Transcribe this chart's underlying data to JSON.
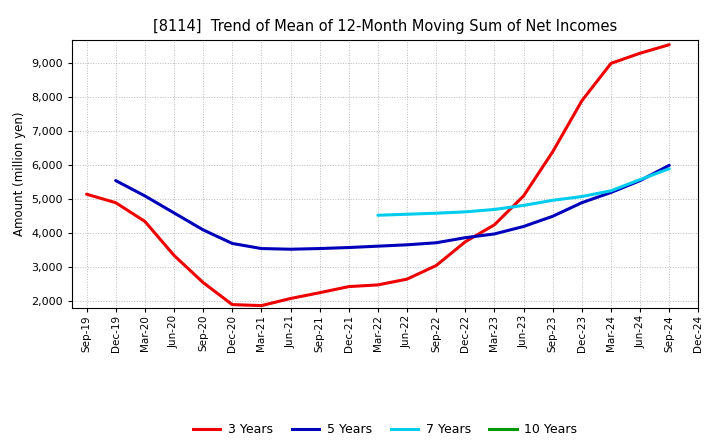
{
  "title": "[8114]  Trend of Mean of 12-Month Moving Sum of Net Incomes",
  "ylabel": "Amount (million yen)",
  "background_color": "#ffffff",
  "grid_color": "#aaaaaa",
  "ylim": [
    1800,
    9700
  ],
  "yticks": [
    2000,
    3000,
    4000,
    5000,
    6000,
    7000,
    8000,
    9000
  ],
  "x_labels": [
    "Sep-19",
    "Dec-19",
    "Mar-20",
    "Jun-20",
    "Sep-20",
    "Dec-20",
    "Mar-21",
    "Jun-21",
    "Sep-21",
    "Dec-21",
    "Mar-22",
    "Jun-22",
    "Sep-22",
    "Dec-22",
    "Mar-23",
    "Jun-23",
    "Sep-23",
    "Dec-23",
    "Mar-24",
    "Jun-24",
    "Sep-24",
    "Dec-24"
  ],
  "series": {
    "3 Years": {
      "color": "#ee0000",
      "data_x": [
        0,
        1,
        2,
        3,
        4,
        5,
        6,
        7,
        8,
        9,
        10,
        11,
        12,
        13,
        14,
        15,
        16,
        17,
        18,
        19,
        20
      ],
      "data_y": [
        5150,
        4900,
        4350,
        3350,
        2550,
        1900,
        1870,
        2080,
        2250,
        2430,
        2480,
        2650,
        3050,
        3750,
        4250,
        5100,
        6400,
        7900,
        9000,
        9300,
        9550
      ]
    },
    "5 Years": {
      "color": "#0000bb",
      "data_x": [
        1,
        2,
        3,
        4,
        5,
        6,
        7,
        8,
        9,
        10,
        11,
        12,
        13,
        14,
        15,
        16,
        17,
        18,
        19,
        20
      ],
      "data_y": [
        5550,
        5100,
        4600,
        4100,
        3700,
        3550,
        3530,
        3550,
        3580,
        3620,
        3660,
        3720,
        3870,
        3980,
        4200,
        4500,
        4900,
        5200,
        5550,
        6000
      ]
    },
    "7 Years": {
      "color": "#00ccee",
      "data_x": [
        10,
        11,
        12,
        13,
        14,
        15,
        16,
        17,
        18,
        19,
        20
      ],
      "data_y": [
        4530,
        4560,
        4590,
        4630,
        4700,
        4820,
        4970,
        5080,
        5250,
        5580,
        5900
      ]
    },
    "10 Years": {
      "color": "#009900",
      "data_x": [],
      "data_y": []
    }
  },
  "legend_entries": [
    "3 Years",
    "5 Years",
    "7 Years",
    "10 Years"
  ],
  "legend_colors": [
    "#ee0000",
    "#0000bb",
    "#00ccee",
    "#009900"
  ]
}
